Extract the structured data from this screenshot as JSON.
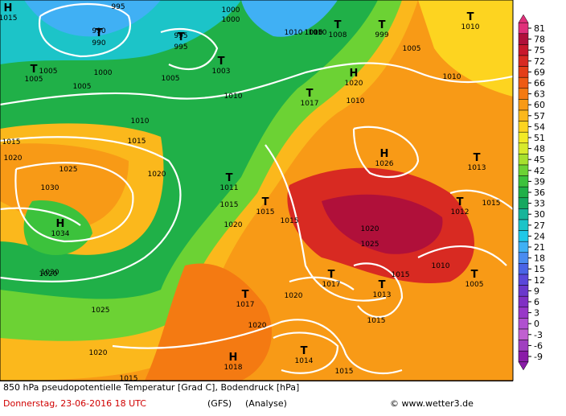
{
  "map": {
    "centers": [
      {
        "symbol": "H",
        "value": "1015"
      },
      {
        "symbol": "T",
        "value": "990"
      },
      {
        "symbol": "T",
        "value": "995"
      },
      {
        "symbol": "T",
        "value": "1005"
      },
      {
        "symbol": "T",
        "value": "1003"
      },
      {
        "symbol": "T",
        "value": "1008"
      },
      {
        "symbol": "T",
        "value": "999"
      },
      {
        "symbol": "T",
        "value": "1010"
      },
      {
        "symbol": "H",
        "value": "1020"
      },
      {
        "symbol": "T",
        "value": "1017"
      },
      {
        "symbol": "H",
        "value": "1026"
      },
      {
        "symbol": "T",
        "value": "1013"
      },
      {
        "symbol": "T",
        "value": "1011"
      },
      {
        "symbol": "T",
        "value": "1015"
      },
      {
        "symbol": "H",
        "value": "1034"
      },
      {
        "symbol": "T",
        "value": "1012"
      },
      {
        "symbol": "T",
        "value": "1017"
      },
      {
        "symbol": "T",
        "value": "1013"
      },
      {
        "symbol": "T",
        "value": "1005"
      },
      {
        "symbol": "T",
        "value": "1017"
      },
      {
        "symbol": "H",
        "value": "1018"
      },
      {
        "symbol": "T",
        "value": "1014"
      }
    ],
    "isobar_labels": [
      "995",
      "1000",
      "990",
      "995",
      "1000",
      "1005",
      "1000",
      "1005",
      "1005",
      "1010",
      "1015",
      "1020",
      "1010",
      "1015",
      "1020",
      "1025",
      "1030",
      "1020",
      "1015",
      "1020",
      "1025",
      "1010",
      "1005",
      "1010",
      "1015",
      "1020",
      "1020",
      "1015",
      "1015",
      "1010",
      "1030",
      "1025",
      "1020",
      "1020",
      "1015",
      "1015",
      "1015",
      "1010",
      "1015",
      "1010",
      "1000"
    ],
    "colorbar": {
      "ticks": [
        81,
        78,
        75,
        72,
        69,
        66,
        63,
        60,
        57,
        54,
        51,
        48,
        45,
        42,
        39,
        36,
        33,
        30,
        27,
        24,
        21,
        18,
        15,
        12,
        9,
        6,
        3,
        0,
        -3,
        -6,
        -9
      ],
      "colors": [
        "#e0307a",
        "#b0103a",
        "#c8182c",
        "#d82a22",
        "#e43e18",
        "#ee5a14",
        "#f47a12",
        "#f89a16",
        "#fbb81c",
        "#fdd420",
        "#f2ea26",
        "#d8ea2c",
        "#a6e02e",
        "#6cd234",
        "#3cc23c",
        "#20b048",
        "#16a860",
        "#18b49a",
        "#1cc4c8",
        "#20c8e8",
        "#40b0f4",
        "#4a8cf0",
        "#4a64e6",
        "#5a48da",
        "#6a38cc",
        "#8030c4",
        "#9838c8",
        "#b050d0",
        "#c060d0",
        "#a040c0",
        "#8a1ca8"
      ]
    }
  },
  "footer": {
    "line1": "850 hPa pseudopotentielle Temperatur [Grad C], Bodendruck [hPa]",
    "date": "Donnerstag, 23-06-2016   18 UTC",
    "model": "(GFS)",
    "run": "(Analyse)",
    "credit": "© www.wetter3.de"
  }
}
